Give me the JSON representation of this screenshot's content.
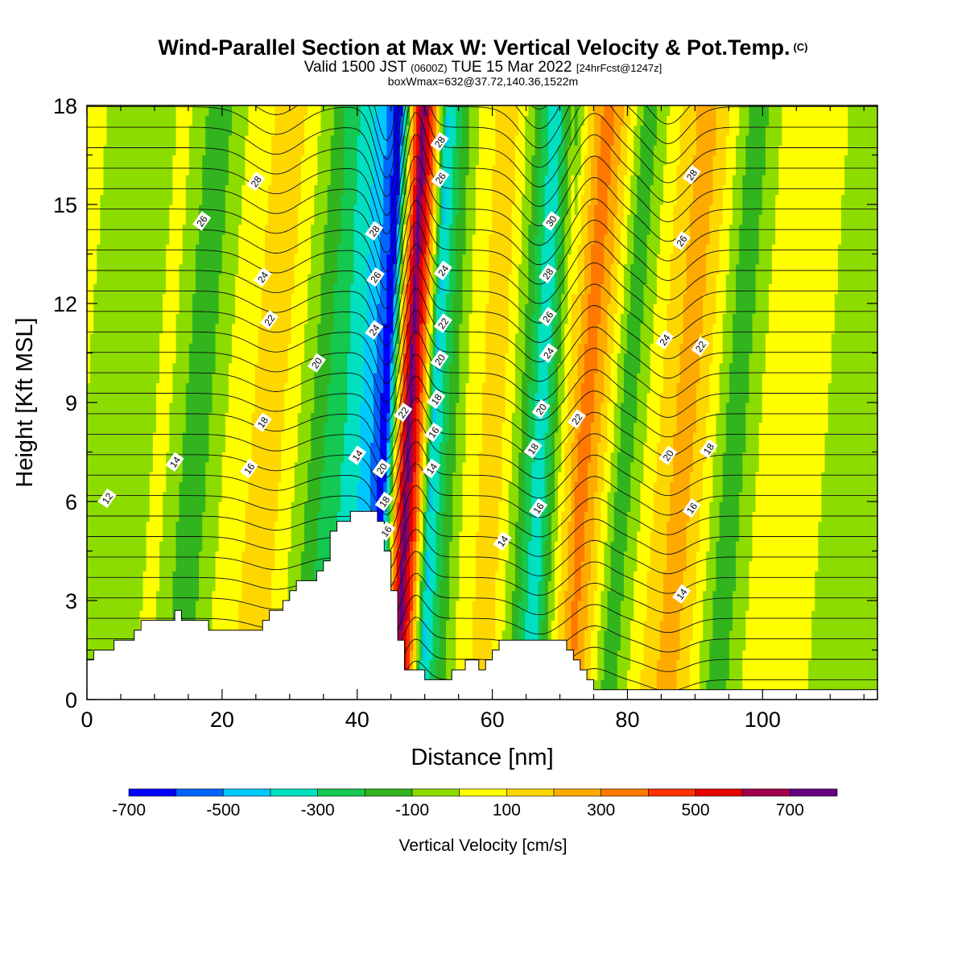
{
  "header": {
    "title": "Wind-Parallel Section at Max W: Vertical Velocity & Pot.Temp.",
    "title_unit": "(C)",
    "valid_prefix": "Valid 1500 JST",
    "valid_zulu": "(0600Z)",
    "valid_date": "TUE 15 Mar 2022",
    "valid_forecast": "[24hrFcst@1247z]",
    "box_line": "boxWmax=632@37.72,140.36,1522m"
  },
  "chart_data": {
    "type": "heatmap",
    "xlabel": "Distance [nm]",
    "ylabel": "Height [Kft MSL]",
    "xlim": [
      0,
      117
    ],
    "ylim": [
      0,
      18
    ],
    "x_ticks": [
      0,
      20,
      40,
      60,
      80,
      100
    ],
    "x_tick_labels": [
      "0",
      "20",
      "40",
      "60",
      "80",
      "100"
    ],
    "y_ticks": [
      0,
      3,
      6,
      9,
      12,
      15,
      18
    ],
    "y_tick_labels": [
      "0",
      "3",
      "6",
      "9",
      "12",
      "15",
      "18"
    ],
    "grid": false,
    "colorbar": {
      "label": "Vertical Velocity [cm/s]",
      "placement": "bottom",
      "range": [
        -700,
        800
      ],
      "step": 100,
      "tick_values": [
        -700,
        -500,
        -300,
        -100,
        100,
        300,
        500,
        700
      ],
      "tick_labels": [
        "-700",
        "-500",
        "-300",
        "-100",
        "100",
        "300",
        "500",
        "700"
      ],
      "colors": [
        "#0000ff",
        "#0064ff",
        "#00c8ff",
        "#00e0c0",
        "#14c850",
        "#32b41e",
        "#8cdc00",
        "#ffff00",
        "#ffd700",
        "#ffaa00",
        "#ff7800",
        "#ff3200",
        "#e60000",
        "#a0004b",
        "#640082"
      ]
    },
    "velocity_bands": [
      {
        "x": 0,
        "w": 0
      },
      {
        "x": 6,
        "w": -50
      },
      {
        "x": 12,
        "w": 20
      },
      {
        "x": 16.5,
        "w": -180
      },
      {
        "x": 22,
        "w": 50
      },
      {
        "x": 28,
        "w": 160
      },
      {
        "x": 32,
        "w": -20
      },
      {
        "x": 35,
        "w": -180
      },
      {
        "x": 39,
        "w": -320
      },
      {
        "x": 42,
        "w": -460
      },
      {
        "x": 44.5,
        "w": -680
      },
      {
        "x": 46.5,
        "w": 320
      },
      {
        "x": 47.8,
        "w": 760
      },
      {
        "x": 49.5,
        "w": 380
      },
      {
        "x": 51.5,
        "w": -420
      },
      {
        "x": 54,
        "w": -160
      },
      {
        "x": 57,
        "w": 60
      },
      {
        "x": 61,
        "w": 160
      },
      {
        "x": 64,
        "w": -60
      },
      {
        "x": 67.5,
        "w": -400
      },
      {
        "x": 71,
        "w": 80
      },
      {
        "x": 74,
        "w": 380
      },
      {
        "x": 76.5,
        "w": 180
      },
      {
        "x": 80,
        "w": -180
      },
      {
        "x": 84,
        "w": 60
      },
      {
        "x": 89,
        "w": 270
      },
      {
        "x": 92,
        "w": 100
      },
      {
        "x": 96,
        "w": -180
      },
      {
        "x": 101,
        "w": 50
      },
      {
        "x": 107,
        "w": 50
      },
      {
        "x": 113,
        "w": -60
      },
      {
        "x": 117,
        "w": -20
      }
    ],
    "theta_contour_labels": [
      {
        "x": 3,
        "y": 6.1,
        "text": "12"
      },
      {
        "x": 13,
        "y": 7.2,
        "text": "14"
      },
      {
        "x": 24,
        "y": 7.0,
        "text": "16"
      },
      {
        "x": 26,
        "y": 8.4,
        "text": "18"
      },
      {
        "x": 34,
        "y": 10.2,
        "text": "20"
      },
      {
        "x": 27,
        "y": 11.5,
        "text": "22"
      },
      {
        "x": 26,
        "y": 12.8,
        "text": "24"
      },
      {
        "x": 17,
        "y": 14.5,
        "text": "26"
      },
      {
        "x": 25,
        "y": 15.7,
        "text": "28"
      },
      {
        "x": 40,
        "y": 7.4,
        "text": "14"
      },
      {
        "x": 43.6,
        "y": 7.0,
        "text": "20"
      },
      {
        "x": 44,
        "y": 6.0,
        "text": "18"
      },
      {
        "x": 44.3,
        "y": 5.1,
        "text": "16"
      },
      {
        "x": 46.8,
        "y": 8.7,
        "text": "22"
      },
      {
        "x": 42.5,
        "y": 11.2,
        "text": "24"
      },
      {
        "x": 42.7,
        "y": 12.8,
        "text": "26"
      },
      {
        "x": 42.5,
        "y": 14.2,
        "text": "28"
      },
      {
        "x": 51,
        "y": 7.0,
        "text": "14"
      },
      {
        "x": 51.3,
        "y": 8.1,
        "text": "16"
      },
      {
        "x": 51.7,
        "y": 9.1,
        "text": "18"
      },
      {
        "x": 52.2,
        "y": 10.3,
        "text": "20"
      },
      {
        "x": 52.7,
        "y": 11.4,
        "text": "22"
      },
      {
        "x": 52.7,
        "y": 13.0,
        "text": "24"
      },
      {
        "x": 52.3,
        "y": 15.8,
        "text": "26"
      },
      {
        "x": 52.2,
        "y": 16.9,
        "text": "28"
      },
      {
        "x": 61.5,
        "y": 4.8,
        "text": "14"
      },
      {
        "x": 66.8,
        "y": 5.8,
        "text": "16"
      },
      {
        "x": 66,
        "y": 7.6,
        "text": "18"
      },
      {
        "x": 67.2,
        "y": 8.8,
        "text": "20"
      },
      {
        "x": 68.3,
        "y": 10.5,
        "text": "24"
      },
      {
        "x": 68.2,
        "y": 11.6,
        "text": "26"
      },
      {
        "x": 68.2,
        "y": 12.9,
        "text": "28"
      },
      {
        "x": 68.7,
        "y": 14.5,
        "text": "30"
      },
      {
        "x": 72.5,
        "y": 8.5,
        "text": "22"
      },
      {
        "x": 88,
        "y": 3.2,
        "text": "14"
      },
      {
        "x": 89.5,
        "y": 5.8,
        "text": "16"
      },
      {
        "x": 92,
        "y": 7.6,
        "text": "18"
      },
      {
        "x": 86,
        "y": 7.4,
        "text": "20"
      },
      {
        "x": 90.8,
        "y": 10.7,
        "text": "22"
      },
      {
        "x": 85.5,
        "y": 10.9,
        "text": "24"
      },
      {
        "x": 88,
        "y": 13.9,
        "text": "26"
      },
      {
        "x": 89.5,
        "y": 15.9,
        "text": "28"
      }
    ],
    "terrain_height_kft": [
      {
        "x": 0,
        "h": 1.3
      },
      {
        "x": 3,
        "h": 1.6
      },
      {
        "x": 6,
        "h": 1.9
      },
      {
        "x": 8,
        "h": 2.3
      },
      {
        "x": 10,
        "h": 2.3
      },
      {
        "x": 13,
        "h": 2.6
      },
      {
        "x": 16,
        "h": 2.3
      },
      {
        "x": 20,
        "h": 2.1
      },
      {
        "x": 23,
        "h": 2.0
      },
      {
        "x": 26,
        "h": 2.3
      },
      {
        "x": 28,
        "h": 2.8
      },
      {
        "x": 30,
        "h": 3.4
      },
      {
        "x": 33,
        "h": 3.6
      },
      {
        "x": 35,
        "h": 4.2
      },
      {
        "x": 36,
        "h": 5.0
      },
      {
        "x": 37,
        "h": 5.5
      },
      {
        "x": 40,
        "h": 5.6
      },
      {
        "x": 41.5,
        "h": 5.8
      },
      {
        "x": 43,
        "h": 5.3
      },
      {
        "x": 44.5,
        "h": 4.2
      },
      {
        "x": 45.5,
        "h": 2.6
      },
      {
        "x": 46.3,
        "h": 1.1
      },
      {
        "x": 48,
        "h": 0.9
      },
      {
        "x": 50,
        "h": 0.7
      },
      {
        "x": 53,
        "h": 0.7
      },
      {
        "x": 55,
        "h": 1.0
      },
      {
        "x": 56.5,
        "h": 1.3
      },
      {
        "x": 58,
        "h": 1.0
      },
      {
        "x": 59.5,
        "h": 1.3
      },
      {
        "x": 61,
        "h": 1.9
      },
      {
        "x": 66,
        "h": 1.9
      },
      {
        "x": 70,
        "h": 1.7
      },
      {
        "x": 72,
        "h": 1.2
      },
      {
        "x": 73.5,
        "h": 0.6
      },
      {
        "x": 75,
        "h": 0.3
      },
      {
        "x": 117,
        "h": 0.3
      }
    ]
  }
}
